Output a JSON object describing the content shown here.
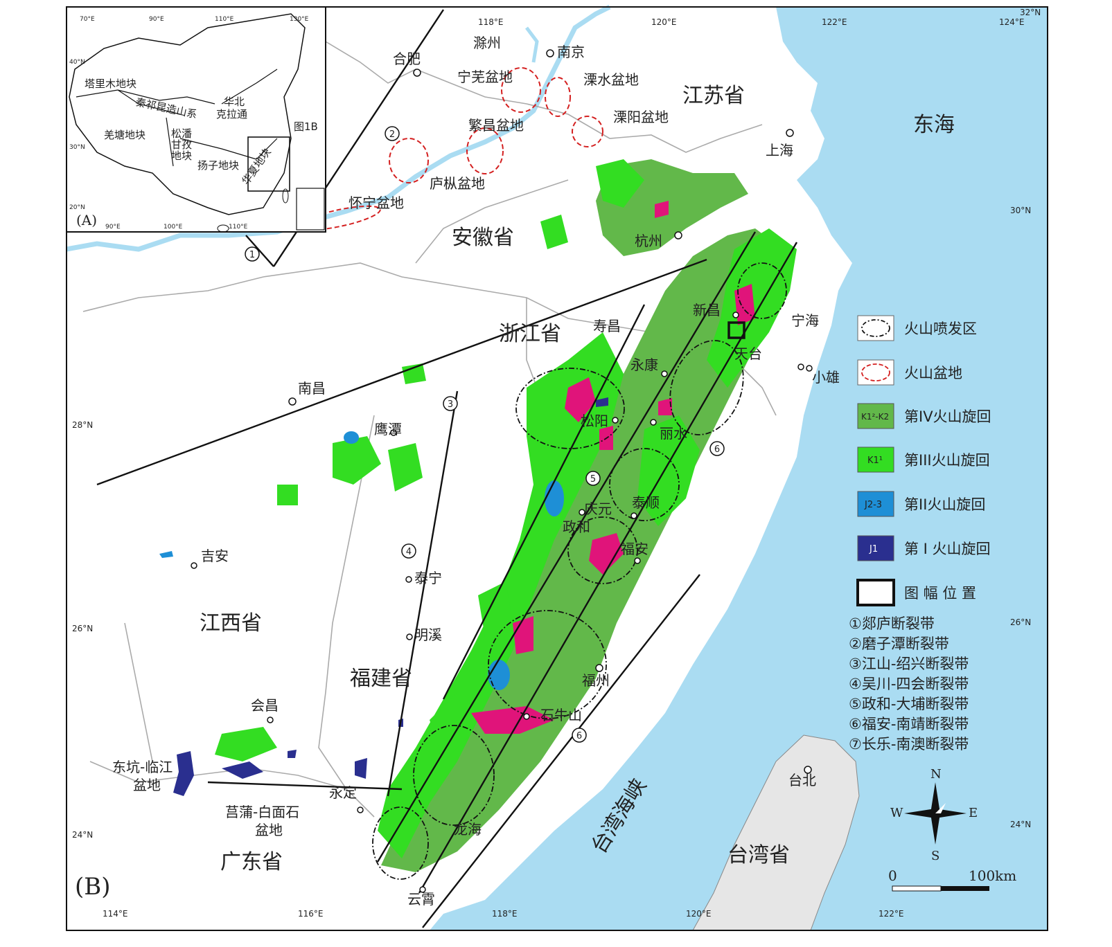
{
  "inset": {
    "label": "(A)",
    "top_ticks": [
      "70°E",
      "90°E",
      "110°E",
      "130°E"
    ],
    "bottom_ticks": [
      "90°E",
      "100°E",
      "110°E"
    ],
    "left_ticks": [
      "40°N",
      "30°N",
      "20°N"
    ],
    "blocks": [
      "塔里木地块",
      "秦祁昆造山系",
      "华北",
      "克拉通",
      "羌塘地块",
      "松潘",
      "甘孜",
      "地块",
      "扬子地块",
      "华夏地块"
    ],
    "fig_ref": "图1B"
  },
  "main": {
    "label": "(B)",
    "top_ticks": [
      "118°E",
      "120°E",
      "122°E",
      "124°E",
      "32°N"
    ],
    "bottom_ticks": [
      "114°E",
      "116°E",
      "118°E",
      "120°E",
      "122°E"
    ],
    "left_ticks": [
      "28°N",
      "26°N",
      "24°N"
    ],
    "right_ticks": [
      "30°N",
      "26°N",
      "24°N"
    ],
    "provinces": [
      "江苏省",
      "安徽省",
      "浙江省",
      "江西省",
      "福建省",
      "广东省",
      "台湾省"
    ],
    "seas": [
      "东海",
      "台湾海峡"
    ],
    "cities": [
      "合肥",
      "滁州",
      "南京",
      "上海",
      "杭州",
      "新昌",
      "宁海",
      "天台",
      "小雄",
      "永康",
      "丽水",
      "松阳",
      "寿昌",
      "南昌",
      "鹰潭",
      "吉安",
      "泰宁",
      "明溪",
      "会昌",
      "永定",
      "庆元",
      "政和",
      "泰顺",
      "福安",
      "福州",
      "石牛山",
      "龙海",
      "云霄",
      "台北"
    ],
    "basins": [
      "宁芜盆地",
      "溧水盆地",
      "繁昌盆地",
      "溧阳盆地",
      "庐枞盆地",
      "怀宁盆地",
      "东坑-临江",
      "盆地",
      "莒蒲-白面石",
      "盆地"
    ],
    "fault_numbers": [
      "1",
      "2",
      "3",
      "4",
      "5",
      "6",
      "6"
    ]
  },
  "legend": {
    "items": [
      {
        "label": "火山喷发区",
        "symbol": "dashdot-ellipse"
      },
      {
        "label": "火山盆地",
        "symbol": "red-dashed-ellipse"
      },
      {
        "label": "第IV火山旋回",
        "symbol": "K1²-K2",
        "color": "#62b84a"
      },
      {
        "label": "第III火山旋回",
        "symbol": "K1¹",
        "color": "#33dd22"
      },
      {
        "label": "第II火山旋回",
        "symbol": "J2-3",
        "color": "#1e8fd6"
      },
      {
        "label": "第 I 火山旋回",
        "symbol": "J1",
        "color": "#2a2f8f"
      },
      {
        "label": "图 幅 位 置",
        "symbol": "black-rect"
      }
    ],
    "faults": [
      "①郯庐断裂带",
      "②磨子潭断裂带",
      "③江山-绍兴断裂带",
      "④吴川-四会断裂带",
      "⑤政和-大埔断裂带",
      "⑥福安-南靖断裂带",
      "⑦长乐-南澳断裂带"
    ]
  },
  "compass": {
    "n": "N",
    "s": "S",
    "e": "E",
    "w": "W"
  },
  "scale": {
    "zero": "0",
    "max": "100km"
  },
  "colors": {
    "sea": "#aadcf2",
    "cycle4": "#62b84a",
    "cycle3": "#33dd22",
    "cycle2": "#1e8fd6",
    "cycle1": "#2a2f8f",
    "magenta": "#e0147a",
    "basin_line": "#d42020"
  }
}
